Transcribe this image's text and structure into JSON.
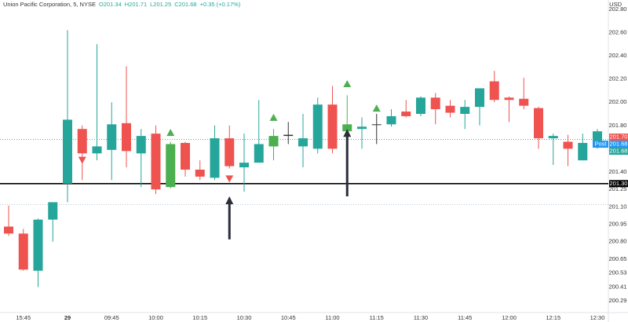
{
  "chart_data": {
    "type": "candlestick",
    "title": "Union Pacific Corporation, 5, NYSE",
    "ohlc_text": [
      "O201.34",
      "H201.71",
      "L201.25",
      "C201.68",
      "+0.35 (+0.17%)"
    ],
    "currency": "USD",
    "categories": [
      null,
      "15:45",
      null,
      null,
      "29",
      null,
      null,
      "09:45",
      null,
      null,
      "10:00",
      null,
      null,
      "10:15",
      null,
      null,
      "10:30",
      null,
      null,
      "10:45",
      null,
      null,
      "11:00",
      null,
      null,
      "11:15",
      null,
      null,
      "11:30",
      null,
      null,
      "11:45",
      null,
      null,
      "12:00",
      null,
      null,
      "12:15",
      null,
      null,
      "12:30"
    ],
    "series": {
      "open": [
        200.93,
        200.87,
        200.55,
        200.99,
        201.3,
        201.77,
        201.56,
        201.59,
        201.82,
        201.56,
        201.73,
        201.27,
        201.65,
        201.42,
        201.35,
        201.69,
        201.44,
        201.48,
        201.62,
        201.72,
        201.62,
        201.6,
        201.98,
        201.75,
        201.77,
        201.81,
        201.81,
        201.92,
        201.9,
        202.04,
        201.97,
        201.9,
        201.96,
        202.18,
        202.04,
        202.03,
        201.95,
        201.69,
        201.66,
        201.5,
        201.65
      ],
      "high": [
        201.11,
        200.91,
        201.0,
        201.14,
        202.62,
        201.8,
        202.5,
        202.0,
        202.31,
        201.77,
        201.8,
        201.66,
        201.66,
        201.5,
        201.8,
        201.8,
        201.73,
        202.02,
        201.77,
        201.83,
        201.9,
        202.04,
        202.14,
        202.06,
        201.87,
        201.9,
        201.94,
        202.02,
        202.05,
        202.08,
        202.02,
        202.02,
        202.12,
        202.27,
        202.05,
        202.21,
        201.96,
        201.73,
        201.72,
        201.73,
        201.77
      ],
      "low": [
        200.85,
        200.55,
        200.41,
        200.8,
        201.14,
        201.33,
        201.5,
        201.33,
        201.44,
        201.27,
        201.21,
        201.26,
        201.36,
        201.33,
        201.33,
        201.43,
        201.23,
        201.48,
        201.5,
        201.64,
        201.44,
        201.56,
        201.56,
        201.72,
        201.6,
        201.64,
        201.79,
        201.87,
        201.88,
        201.81,
        201.87,
        201.77,
        201.8,
        202.0,
        201.83,
        201.94,
        201.6,
        201.46,
        201.45,
        201.5,
        201.6
      ],
      "close": [
        200.87,
        200.56,
        200.99,
        201.14,
        201.85,
        201.56,
        201.62,
        201.81,
        201.58,
        201.71,
        201.25,
        201.64,
        201.42,
        201.36,
        201.69,
        201.45,
        201.48,
        201.64,
        201.71,
        201.71,
        201.69,
        201.98,
        201.6,
        201.81,
        201.79,
        201.81,
        201.88,
        201.88,
        202.04,
        201.94,
        201.91,
        201.96,
        202.12,
        202.02,
        202.02,
        201.97,
        201.69,
        201.71,
        201.6,
        201.65,
        201.75
      ],
      "colors": [
        "#ef5350",
        "#ef5350",
        "#26a69a",
        "#26a69a",
        "#26a69a",
        "#ef5350",
        "#26a69a",
        "#26a69a",
        "#ef5350",
        "#26a69a",
        "#ef5350",
        "#4caf50",
        "#ef5350",
        "#ef5350",
        "#26a69a",
        "#ef5350",
        "#26a69a",
        "#26a69a",
        "#4caf50",
        "#333333",
        "#26a69a",
        "#26a69a",
        "#ef5350",
        "#4caf50",
        "#26a69a",
        "#333333",
        "#26a69a",
        "#ef5350",
        "#26a69a",
        "#ef5350",
        "#ef5350",
        "#26a69a",
        "#26a69a",
        "#ef5350",
        "#ef5350",
        "#ef5350",
        "#ef5350",
        "#26a69a",
        "#ef5350",
        "#26a69a",
        "#26a69a"
      ]
    },
    "markers": [
      {
        "index": 5,
        "shape": "down",
        "color": "#ef5350",
        "value": 201.5
      },
      {
        "index": 15,
        "shape": "down",
        "color": "#ef5350",
        "value": 201.34
      },
      {
        "index": 11,
        "shape": "up",
        "color": "#4caf50",
        "value": 201.74
      },
      {
        "index": 18,
        "shape": "up",
        "color": "#4caf50",
        "value": 201.87
      },
      {
        "index": 23,
        "shape": "up",
        "color": "#4caf50",
        "value": 202.16
      },
      {
        "index": 25,
        "shape": "up",
        "color": "#4caf50",
        "value": 201.95
      }
    ],
    "arrows": [
      {
        "index": 15,
        "from": 200.82,
        "to": 201.19
      },
      {
        "index": 23,
        "from": 201.19,
        "to": 201.77
      }
    ],
    "levels": [
      {
        "value": 201.3,
        "color": "#000000",
        "style": "solid"
      },
      {
        "value": 201.68,
        "color": "#26a69a",
        "style": "dotted"
      },
      {
        "value": 201.12,
        "color": "#9fb6c8",
        "style": "dotted"
      }
    ],
    "price_tags": [
      {
        "value": 201.7,
        "label": "201.70",
        "color": "#ef5350"
      },
      {
        "value": 201.68,
        "label": "201.68",
        "color": "#2196f3",
        "note": "Post"
      },
      {
        "value": 201.68,
        "label": "201.68",
        "color": "#26a69a"
      },
      {
        "value": 201.3,
        "label": "201.30",
        "color": "#000000"
      }
    ],
    "ylim": [
      200.19,
      202.88
    ],
    "yticks": [
      {
        "value": 202.8,
        "label": "202.80"
      },
      {
        "value": 202.6,
        "label": "202.60"
      },
      {
        "value": 202.4,
        "label": "202.40"
      },
      {
        "value": 202.2,
        "label": "202.20"
      },
      {
        "value": 202.0,
        "label": "202.00"
      },
      {
        "value": 201.8,
        "label": "201.80"
      },
      {
        "value": 201.6,
        "label": "201.60"
      },
      {
        "value": 201.4,
        "label": "201.40"
      },
      {
        "value": 201.25,
        "label": "201.25"
      },
      {
        "value": 201.1,
        "label": "201.10"
      },
      {
        "value": 200.95,
        "label": "200.95"
      },
      {
        "value": 200.8,
        "label": "200.80"
      },
      {
        "value": 200.65,
        "label": "200.65"
      },
      {
        "value": 200.53,
        "label": "200.53"
      },
      {
        "value": 200.41,
        "label": "200.41"
      },
      {
        "value": 200.29,
        "label": "200.29"
      }
    ]
  }
}
